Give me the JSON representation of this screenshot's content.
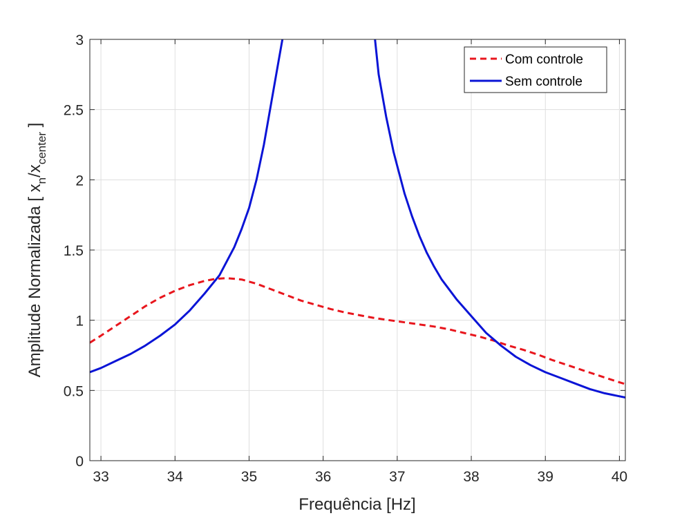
{
  "chart_data": {
    "type": "line",
    "xlabel": "Frequência [Hz]",
    "ylabel": {
      "prefix": "Amplitude Normalizada [ x",
      "sub1": "n",
      "mid": "/x",
      "sub2": "center",
      "suffix": " ]"
    },
    "xlim": [
      32.85,
      40.08
    ],
    "ylim": [
      0,
      3
    ],
    "xticks": [
      33,
      34,
      35,
      36,
      37,
      38,
      39,
      40
    ],
    "yticks": [
      0,
      0.5,
      1,
      1.5,
      2,
      2.5,
      3
    ],
    "ytick_labels": [
      "0",
      "0.5",
      "1",
      "1.5",
      "2",
      "2.5",
      "3"
    ],
    "grid": true,
    "legend_position": "top-right",
    "series": [
      {
        "name": "Com controle",
        "color": "#e8161d",
        "style": "dashed",
        "x": [
          32.85,
          33.0,
          33.2,
          33.4,
          33.6,
          33.8,
          34.0,
          34.2,
          34.4,
          34.55,
          34.7,
          34.9,
          35.1,
          35.3,
          35.5,
          35.7,
          35.9,
          36.1,
          36.3,
          36.5,
          36.7,
          36.9,
          37.1,
          37.3,
          37.5,
          37.7,
          37.9,
          38.1,
          38.3,
          38.5,
          38.7,
          38.9,
          39.1,
          39.3,
          39.5,
          39.7,
          39.9,
          40.08
        ],
        "y": [
          0.84,
          0.89,
          0.96,
          1.03,
          1.1,
          1.16,
          1.21,
          1.25,
          1.28,
          1.295,
          1.3,
          1.29,
          1.26,
          1.22,
          1.18,
          1.14,
          1.11,
          1.08,
          1.055,
          1.035,
          1.015,
          1.0,
          0.985,
          0.97,
          0.955,
          0.935,
          0.91,
          0.885,
          0.855,
          0.82,
          0.79,
          0.755,
          0.715,
          0.68,
          0.645,
          0.61,
          0.575,
          0.545
        ]
      },
      {
        "name": "Sem controle",
        "color": "#0a14d6",
        "style": "solid",
        "x": [
          32.85,
          33.0,
          33.2,
          33.4,
          33.6,
          33.8,
          34.0,
          34.2,
          34.4,
          34.6,
          34.8,
          34.9,
          35.0,
          35.1,
          35.2,
          35.3,
          35.4,
          35.45
        ],
        "y": [
          0.63,
          0.66,
          0.71,
          0.76,
          0.82,
          0.89,
          0.97,
          1.07,
          1.19,
          1.32,
          1.52,
          1.65,
          1.8,
          2.0,
          2.25,
          2.55,
          2.85,
          3.0
        ],
        "x2": [
          36.7,
          36.75,
          36.85,
          36.95,
          37.0,
          37.1,
          37.2,
          37.3,
          37.4,
          37.5,
          37.6,
          37.8,
          38.0,
          38.2,
          38.4,
          38.6,
          38.8,
          39.0,
          39.2,
          39.4,
          39.6,
          39.8,
          40.08
        ],
        "y2": [
          3.0,
          2.75,
          2.45,
          2.2,
          2.1,
          1.9,
          1.74,
          1.6,
          1.48,
          1.38,
          1.29,
          1.15,
          1.03,
          0.91,
          0.82,
          0.74,
          0.68,
          0.63,
          0.59,
          0.55,
          0.51,
          0.48,
          0.45
        ]
      }
    ]
  }
}
